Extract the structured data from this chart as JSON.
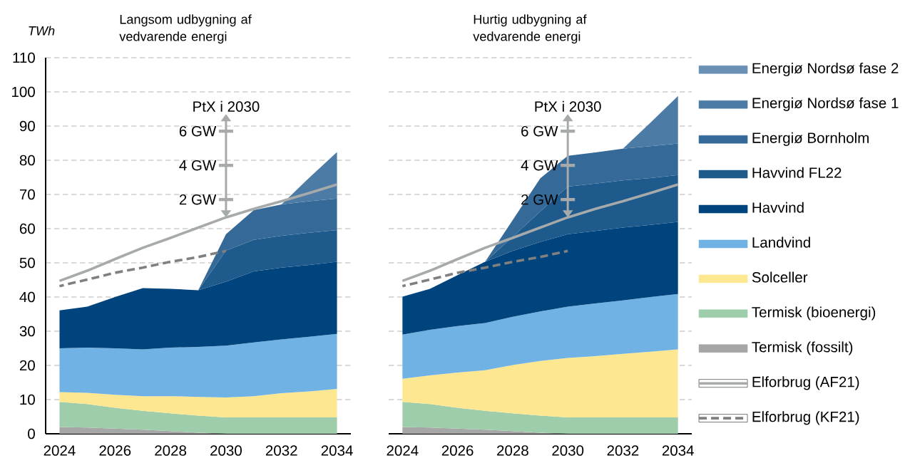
{
  "chart_data": [
    {
      "type": "area",
      "title": "Langsom udbygning af vedvarende energi",
      "ylabel": "TWh",
      "x": [
        2024,
        2025,
        2026,
        2027,
        2028,
        2029,
        2030,
        2031,
        2032,
        2033,
        2034
      ],
      "xlim": [
        2023.5,
        2034.5
      ],
      "xticks": [
        2024,
        2026,
        2028,
        2030,
        2032,
        2034
      ],
      "ylim": [
        0,
        110
      ],
      "yticks": [
        0,
        10,
        20,
        30,
        40,
        50,
        60,
        70,
        80,
        90,
        100,
        110
      ],
      "stacked": true,
      "grid": "y",
      "legend": false,
      "series": [
        {
          "color": "#a6a6a6",
          "values": [
            2.0,
            1.8,
            1.5,
            1.2,
            0.8,
            0.3,
            0,
            0,
            0,
            0,
            0
          ]
        },
        {
          "color": "#9ecdab",
          "values": [
            7.3,
            6.9,
            6.1,
            5.5,
            5.2,
            5.0,
            4.8,
            4.8,
            4.8,
            4.8,
            4.8
          ]
        },
        {
          "color": "#fee791",
          "values": [
            2.9,
            3.3,
            3.8,
            4.3,
            5.0,
            5.5,
            5.8,
            6.2,
            7.1,
            7.6,
            8.3
          ]
        },
        {
          "color": "#70b2e3",
          "values": [
            12.8,
            13.2,
            13.6,
            13.7,
            14.2,
            14.6,
            15.2,
            15.7,
            15.7,
            16.0,
            16.1
          ]
        },
        {
          "color": "#00447e",
          "values": [
            11.1,
            12.0,
            15.0,
            17.9,
            17.2,
            16.6,
            18.7,
            20.8,
            21.0,
            21.0,
            21.1
          ]
        },
        {
          "color": "#1e5a8c",
          "values": [
            null,
            null,
            null,
            null,
            null,
            0,
            9.1,
            9.2,
            9.3,
            9.4,
            9.3
          ]
        },
        {
          "color": "#356a98",
          "values": [
            null,
            null,
            null,
            null,
            null,
            0,
            4.8,
            8.7,
            9.2,
            9.2,
            9.2
          ]
        },
        {
          "color": "#4c7ba6",
          "values": [
            null,
            null,
            null,
            null,
            null,
            null,
            null,
            null,
            0,
            6.9,
            13.6
          ]
        },
        {
          "type": "line",
          "color": "#a6aaab",
          "values": [
            44.7,
            47.7,
            51.1,
            54.4,
            57.3,
            60.3,
            63.3,
            65.8,
            68.0,
            70.4,
            72.9
          ]
        },
        {
          "type": "line",
          "line_style": "dashed",
          "color": "#808080",
          "values": [
            43.2,
            45.1,
            47.1,
            48.6,
            50.3,
            51.7,
            53.5,
            null,
            null,
            null,
            null
          ]
        }
      ],
      "annotations": [
        {
          "text": "PtX i 2030",
          "x": 2030
        },
        "6 GW",
        "4 GW",
        "2 GW"
      ]
    },
    {
      "type": "area",
      "title": "Hurtig udbygning af vedvarende energi",
      "x": [
        2024,
        2025,
        2026,
        2027,
        2028,
        2029,
        2030,
        2031,
        2032,
        2033,
        2034
      ],
      "xlim": [
        2023.5,
        2034.5
      ],
      "xticks": [
        2024,
        2026,
        2028,
        2030,
        2032,
        2034
      ],
      "ylim": [
        0,
        110
      ],
      "yticks": [
        0,
        10,
        20,
        30,
        40,
        50,
        60,
        70,
        80,
        90,
        100,
        110
      ],
      "tick_labels": "x",
      "stacked": true,
      "grid": "y",
      "legend": "right",
      "series": [
        {
          "name": "Termisk (fossilt)",
          "color": "#a6a6a6",
          "values": [
            2.0,
            1.8,
            1.5,
            1.2,
            0.8,
            0.3,
            0,
            0,
            0,
            0,
            0
          ]
        },
        {
          "name": "Termisk (bioenergi)",
          "color": "#9ecdab",
          "values": [
            7.3,
            6.9,
            6.1,
            5.5,
            5.2,
            5.0,
            4.8,
            4.8,
            4.8,
            4.8,
            4.8
          ]
        },
        {
          "name": "Solceller",
          "color": "#fee791",
          "values": [
            6.8,
            8.4,
            10.3,
            11.9,
            14.1,
            16.0,
            17.4,
            17.9,
            18.6,
            19.2,
            19.9
          ]
        },
        {
          "name": "Landvind",
          "color": "#70b2e3",
          "values": [
            12.9,
            13.3,
            13.6,
            13.8,
            14.1,
            14.5,
            15.0,
            15.4,
            15.6,
            16.0,
            16.2
          ]
        },
        {
          "name": "Havvind",
          "color": "#00447e",
          "values": [
            11.1,
            12.0,
            14.9,
            17.9,
            19.3,
            20.3,
            21.2,
            21.2,
            21.3,
            21.1,
            21.1
          ]
        },
        {
          "name": "Havvind FL22",
          "color": "#1e5a8c",
          "values": [
            null,
            null,
            null,
            0,
            4.1,
            8.9,
            13.9,
            13.9,
            13.8,
            13.7,
            13.7
          ]
        },
        {
          "name": "Energiø Bornholm",
          "color": "#356a98",
          "values": [
            null,
            null,
            null,
            0,
            4.9,
            9.7,
            9.0,
            9.1,
            9.3,
            9.3,
            9.2
          ]
        },
        {
          "name": "Energiø Nordsø fase 1",
          "color": "#4c7ba6",
          "values": [
            null,
            null,
            null,
            null,
            null,
            null,
            null,
            null,
            0,
            6.9,
            13.9
          ]
        },
        {
          "name": "Energiø Nordsø fase 2",
          "color": "#6a90b4",
          "values": [
            null,
            null,
            null,
            null,
            null,
            null,
            null,
            null,
            null,
            null,
            null
          ]
        },
        {
          "name": "Elforbrug (AF21)",
          "type": "line",
          "color": "#a6aaab",
          "values": [
            44.7,
            47.7,
            51.1,
            54.4,
            57.3,
            60.3,
            63.3,
            65.8,
            68.0,
            70.4,
            72.9
          ]
        },
        {
          "name": "Elforbrug (KF21)",
          "type": "line",
          "line_style": "dashed",
          "color": "#808080",
          "values": [
            43.2,
            45.1,
            47.1,
            48.6,
            50.3,
            51.7,
            53.5,
            null,
            null,
            null,
            null
          ]
        }
      ],
      "annotations": [
        {
          "text": "PtX i 2030",
          "x": 2030
        },
        "6 GW",
        "4 GW",
        "2 GW"
      ]
    }
  ]
}
